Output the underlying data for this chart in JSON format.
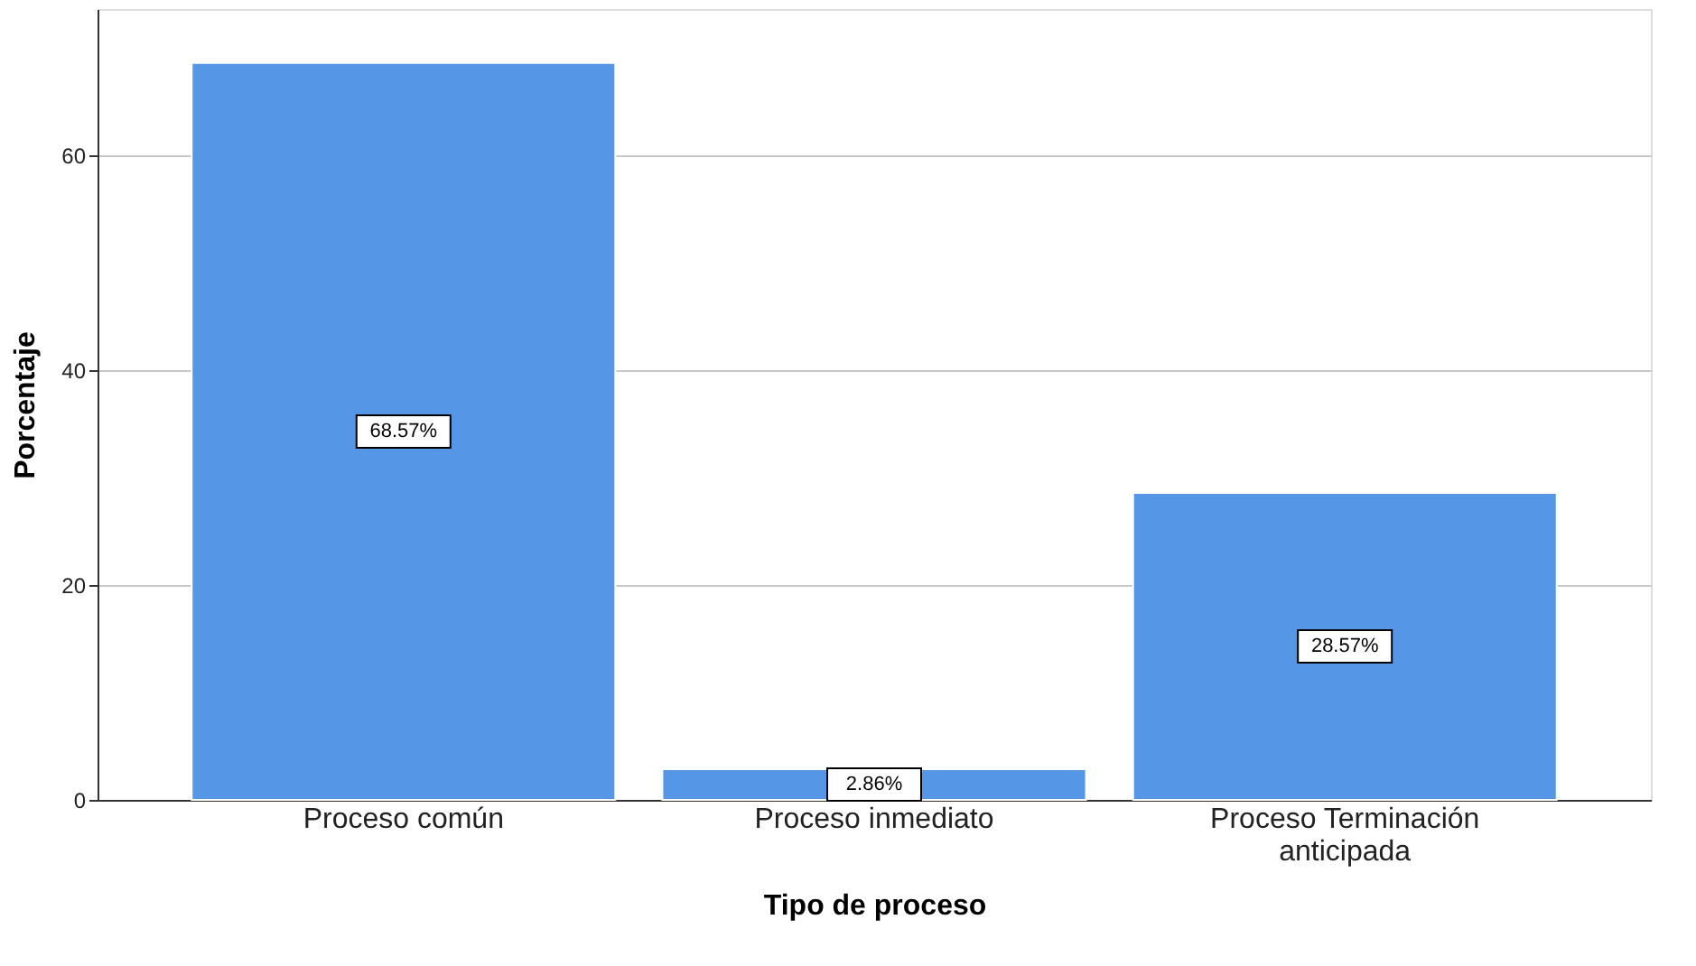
{
  "chart_data": {
    "type": "bar",
    "xlabel": "Tipo de proceso",
    "ylabel": "Porcentaje",
    "categories": [
      "Proceso común",
      "Proceso inmediato",
      "Proceso Terminación anticipada"
    ],
    "values": [
      68.57,
      2.86,
      28.57
    ],
    "color": "#5596e6",
    "value_labels": [
      "68.57%",
      "2.86%",
      "28.57%"
    ],
    "ylim": [
      0,
      73.6
    ],
    "yticks": [
      0,
      20,
      40,
      60
    ],
    "grid": "y"
  }
}
